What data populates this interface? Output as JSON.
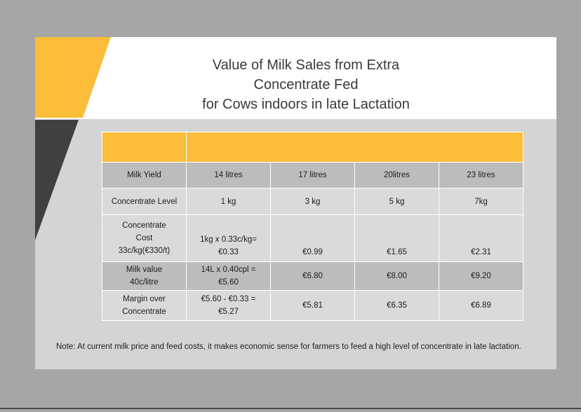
{
  "title_lines": [
    "Value of Milk Sales from Extra",
    "Concentrate Fed",
    "for Cows indoors in late Lactation"
  ],
  "table": {
    "rows": [
      {
        "label": [
          "Milk Yield"
        ],
        "cells": [
          [
            "14 litres"
          ],
          [
            "17 litres"
          ],
          [
            "20litres"
          ],
          [
            "23 litres"
          ]
        ]
      },
      {
        "label": [
          "Concentrate Level"
        ],
        "cells": [
          [
            "1 kg"
          ],
          [
            "3 kg"
          ],
          [
            "5 kg"
          ],
          [
            "7kg"
          ]
        ]
      },
      {
        "label": [
          "Concentrate",
          "Cost",
          "33c/kg(€330/t)"
        ],
        "cells": [
          [
            "1kg x 0.33c/kg=",
            "€0.33"
          ],
          [
            "€0.99"
          ],
          [
            "€1.65"
          ],
          [
            "€2.31"
          ]
        ]
      },
      {
        "label": [
          "Milk value",
          "40c/litre"
        ],
        "cells": [
          [
            "14L x 0.40cpl =",
            "€5.60"
          ],
          [
            "€6.80"
          ],
          [
            "€8.00"
          ],
          [
            "€9.20"
          ]
        ]
      },
      {
        "label": [
          "Margin over",
          "Concentrate"
        ],
        "cells": [
          [
            "€5.60 - €0.33 =",
            "€5.27"
          ],
          [
            "€5.81"
          ],
          [
            "€6.35"
          ],
          [
            "€6.89"
          ]
        ]
      }
    ]
  },
  "note": "Note: At current milk price and feed costs, it makes economic sense for farmers to feed a high level of concentrate in late lactation.",
  "colors": {
    "accent_yellow": "#fbbd3a",
    "dark_gray": "#404040",
    "background": "#a6a6a6"
  }
}
